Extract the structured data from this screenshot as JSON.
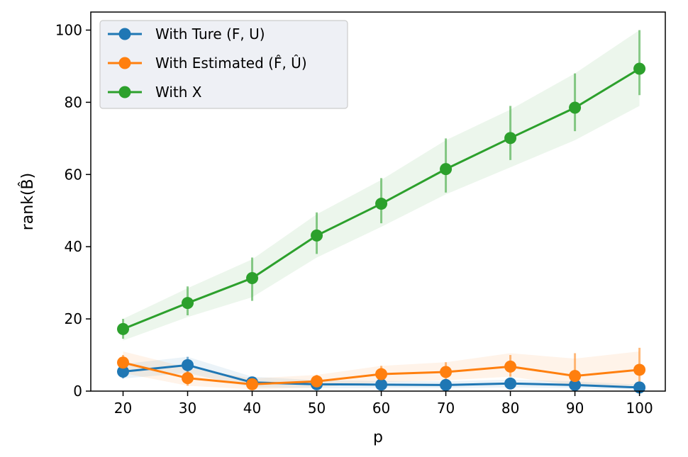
{
  "chart_data": {
    "type": "line",
    "title": "",
    "xlabel": "p",
    "ylabel": "rank(B̂)",
    "x": [
      20,
      30,
      40,
      50,
      60,
      70,
      80,
      90,
      100
    ],
    "xlim": [
      15,
      104
    ],
    "ylim": [
      0,
      105
    ],
    "xticks": [
      20,
      30,
      40,
      50,
      60,
      70,
      80,
      90,
      100
    ],
    "yticks": [
      0,
      20,
      40,
      60,
      80,
      100
    ],
    "legend_position": "top-left",
    "series": [
      {
        "name": "With Ture (F, U)",
        "color": "#1f77b4",
        "values": [
          5.4,
          7.2,
          2.4,
          1.9,
          1.8,
          1.7,
          2.1,
          1.7,
          1.0
        ],
        "band_low": [
          3.5,
          5.0,
          1.0,
          0.8,
          0.8,
          0.8,
          1.0,
          0.8,
          0.3
        ],
        "band_high": [
          7.5,
          9.5,
          4.0,
          3.0,
          2.8,
          2.7,
          3.2,
          2.7,
          1.8
        ],
        "err_low": [
          3.5,
          5.0,
          1.0,
          0.8,
          0.8,
          0.8,
          1.0,
          0.8,
          0.3
        ],
        "err_high": [
          7.5,
          9.5,
          4.0,
          3.0,
          2.8,
          2.7,
          3.2,
          2.7,
          1.8
        ]
      },
      {
        "name": "With Estimated (F̂, Û)",
        "color": "#ff7f0e",
        "values": [
          7.9,
          3.6,
          1.9,
          2.7,
          4.7,
          5.3,
          6.8,
          4.2,
          5.9
        ],
        "band_low": [
          5.0,
          1.5,
          0.5,
          1.0,
          2.5,
          3.0,
          4.0,
          1.5,
          1.5
        ],
        "band_high": [
          11.0,
          6.5,
          3.5,
          4.5,
          7.0,
          8.0,
          10.5,
          9.0,
          11.0
        ],
        "err_low": [
          5.5,
          1.5,
          0.5,
          1.0,
          2.5,
          2.5,
          4.0,
          0.5,
          1.0
        ],
        "err_high": [
          10.0,
          5.5,
          3.5,
          4.5,
          7.0,
          8.0,
          10.0,
          10.5,
          12.0
        ]
      },
      {
        "name": "With X",
        "color": "#2ca02c",
        "values": [
          17.2,
          24.4,
          31.3,
          43.1,
          51.9,
          61.5,
          70.1,
          78.5,
          89.3
        ],
        "band_low": [
          14.0,
          20.5,
          26.0,
          37.0,
          45.5,
          54.5,
          62.0,
          69.5,
          79.0
        ],
        "band_high": [
          20.0,
          28.5,
          36.5,
          49.0,
          58.5,
          69.5,
          78.0,
          88.0,
          100.0
        ],
        "err_low": [
          14.5,
          21.0,
          25.0,
          38.0,
          46.5,
          55.0,
          64.0,
          72.0,
          82.0
        ],
        "err_high": [
          20.0,
          29.0,
          37.0,
          49.5,
          59.0,
          70.0,
          79.0,
          88.0,
          100.0
        ]
      }
    ]
  }
}
